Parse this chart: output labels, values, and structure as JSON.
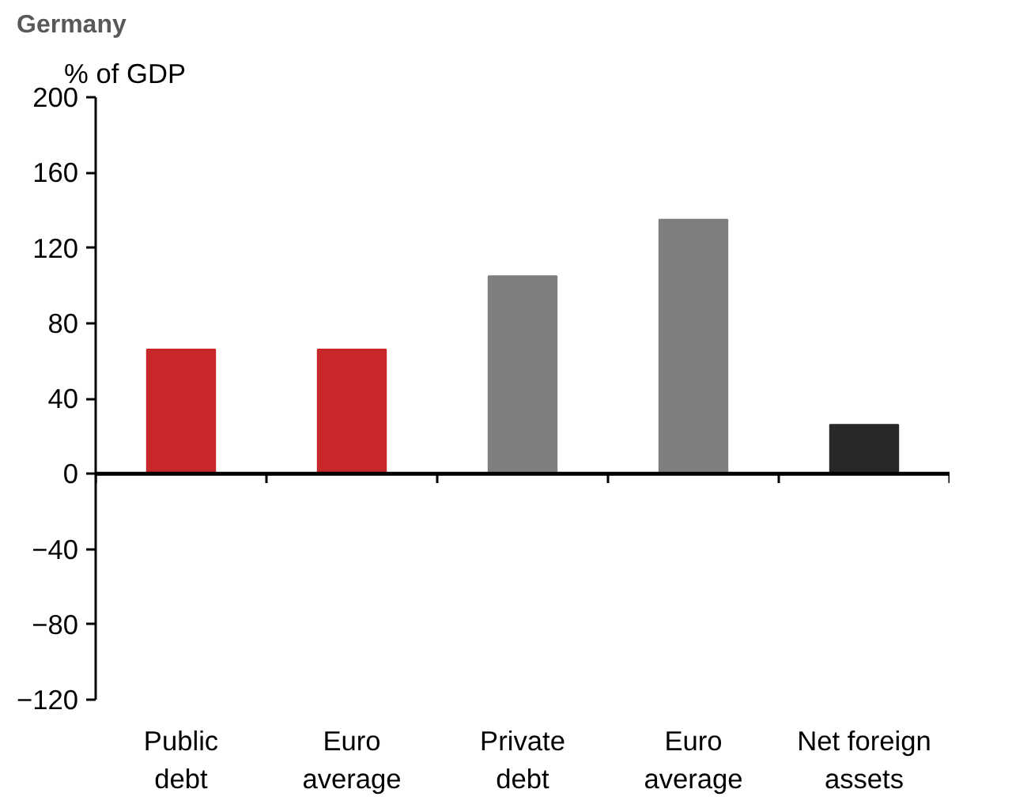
{
  "chart_data": {
    "type": "bar",
    "title": "Germany",
    "ylabel": "% of GDP",
    "categories": [
      "Public debt",
      "Euro average",
      "Private debt",
      "Euro average",
      "Net foreign assets"
    ],
    "values": [
      66,
      66,
      105,
      135,
      26
    ],
    "colors": [
      "#c9282b",
      "#c9282b",
      "#7f7f7f",
      "#7f7f7f",
      "#282828"
    ],
    "ylim": [
      -120,
      200
    ],
    "yticks": [
      -120,
      -80,
      -40,
      0,
      40,
      80,
      120,
      160,
      200
    ],
    "grid": false,
    "ref_lines": [
      {
        "axis": "y",
        "value": 0,
        "color": "#000000",
        "line_style": "solid"
      }
    ]
  }
}
